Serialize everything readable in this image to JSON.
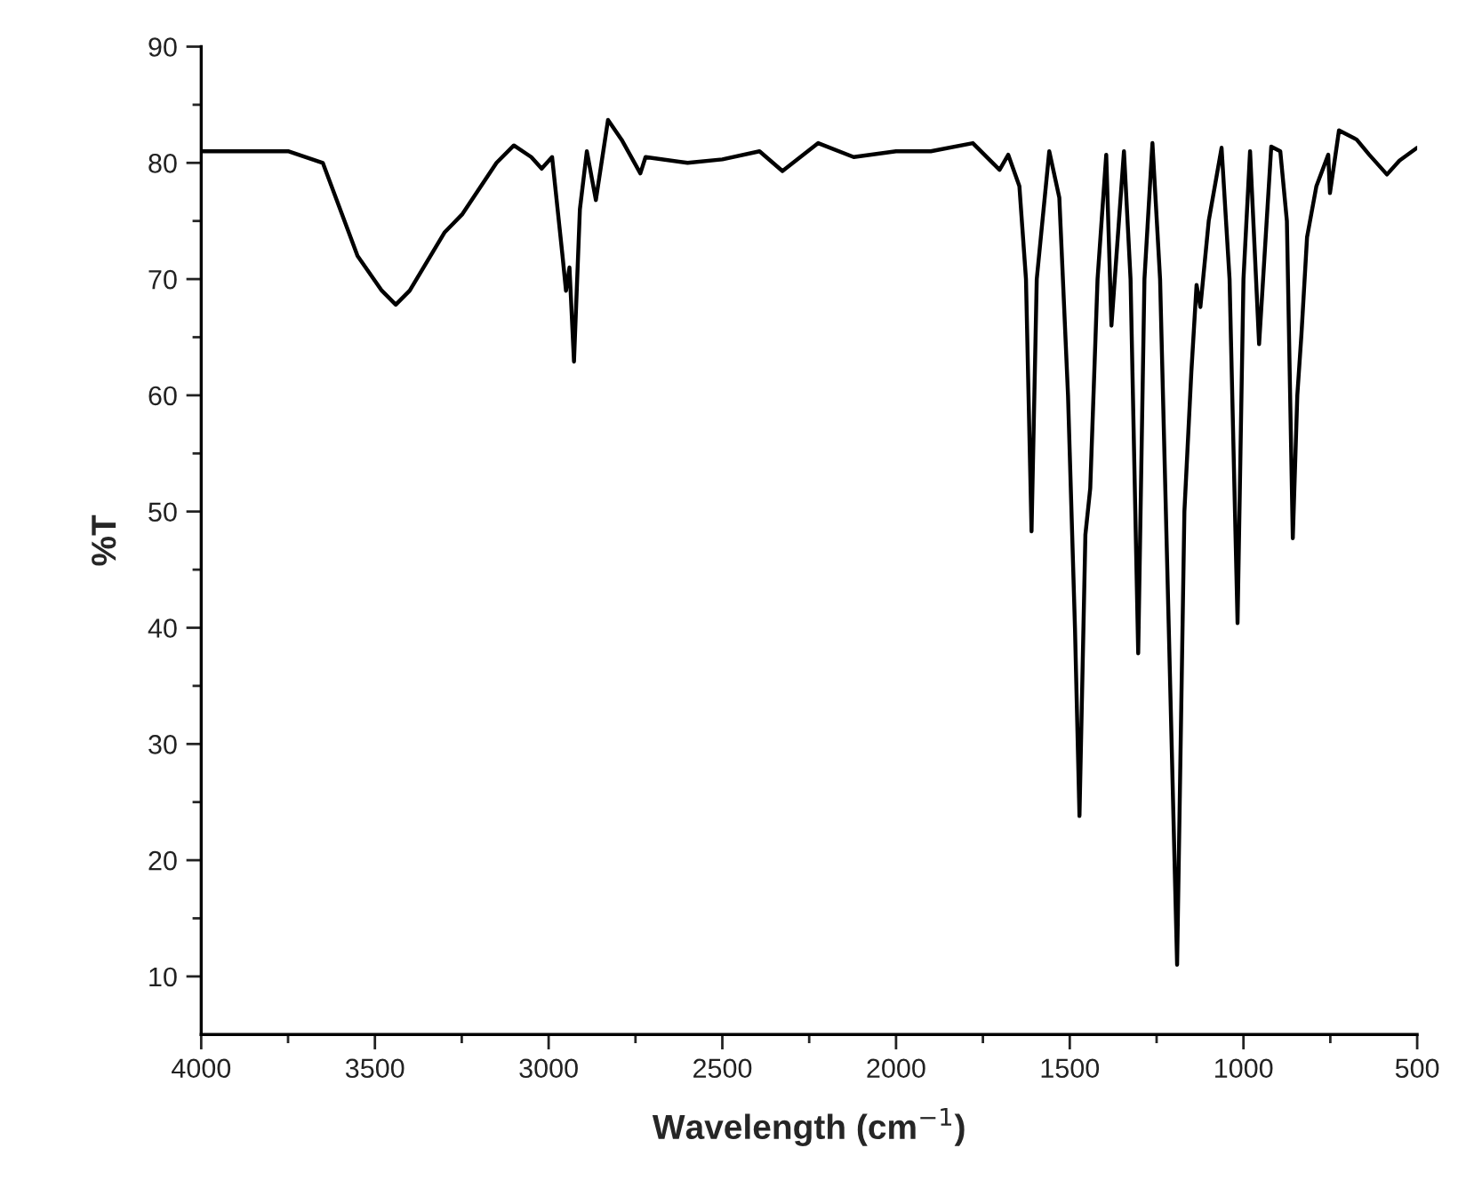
{
  "chart_data": {
    "type": "line",
    "xlabel": "Wavelength (cm$^{−1}$)",
    "ylabel": "%T",
    "x": [
      4000,
      3850,
      3750,
      3650,
      3550,
      3480,
      3440,
      3400,
      3300,
      3248,
      3150,
      3100,
      3050,
      3020,
      2990,
      2960,
      2950,
      2940,
      2927,
      2910,
      2890,
      2864,
      2829,
      2790,
      2736,
      2721,
      2600,
      2500,
      2393,
      2327,
      2224,
      2122,
      2000,
      1900,
      1779,
      1702,
      1677,
      1645,
      1626,
      1610,
      1595,
      1559,
      1530,
      1505,
      1485,
      1472,
      1455,
      1441,
      1420,
      1395,
      1380,
      1344,
      1325,
      1303,
      1285,
      1262,
      1240,
      1215,
      1191,
      1170,
      1150,
      1135,
      1124,
      1100,
      1063,
      1040,
      1017,
      1000,
      981,
      955,
      920,
      894,
      875,
      858,
      845,
      833,
      817,
      790,
      756,
      751,
      725,
      674,
      638,
      587,
      551,
      500
    ],
    "series": [
      {
        "color": "#000000",
        "values": [
          81,
          81,
          81,
          80,
          72,
          69,
          67.8,
          69,
          74,
          75.6,
          80,
          81.5,
          80.5,
          79.5,
          80.5,
          72,
          69,
          71,
          62.9,
          76,
          81,
          76.8,
          83.7,
          82,
          79.1,
          80.5,
          80,
          80.3,
          81,
          79.3,
          81.7,
          80.5,
          81,
          81,
          81.7,
          79.4,
          80.7,
          78,
          70,
          48.3,
          70,
          81,
          77,
          60,
          40,
          23.8,
          48,
          52,
          70,
          80.7,
          66,
          81,
          70,
          37.8,
          70,
          81.7,
          70,
          40,
          11,
          50,
          62,
          69.5,
          67.6,
          75,
          81.3,
          70,
          40.4,
          70,
          81,
          64.4,
          81.4,
          81,
          75,
          47.7,
          60,
          65.3,
          73.6,
          78,
          80.7,
          77.4,
          82.8,
          82,
          80.7,
          79,
          80.2,
          81.3
        ]
      }
    ],
    "xlim": [
      4000,
      500
    ],
    "xticks": [
      4000,
      {
        "value": 3750,
        "label": null
      },
      3500,
      {
        "value": 3250,
        "label": null
      },
      3000,
      {
        "value": 2750,
        "label": null
      },
      2500,
      {
        "value": 2250,
        "label": null
      },
      2000,
      {
        "value": 1750,
        "label": null
      },
      1500,
      {
        "value": 1250,
        "label": null
      },
      1000,
      {
        "value": 750,
        "label": null
      },
      500
    ],
    "ylim": [
      5,
      90
    ],
    "yticks": [
      10,
      {
        "value": 15,
        "label": null
      },
      20,
      {
        "value": 25,
        "label": null
      },
      30,
      {
        "value": 35,
        "label": null
      },
      40,
      {
        "value": 45,
        "label": null
      },
      50,
      {
        "value": 55,
        "label": null
      },
      60,
      {
        "value": 65,
        "label": null
      },
      70,
      {
        "value": 75,
        "label": null
      },
      80,
      {
        "value": 85,
        "label": null
      },
      90
    ],
    "grid": false,
    "legend": false,
    "line_style": "solid"
  }
}
